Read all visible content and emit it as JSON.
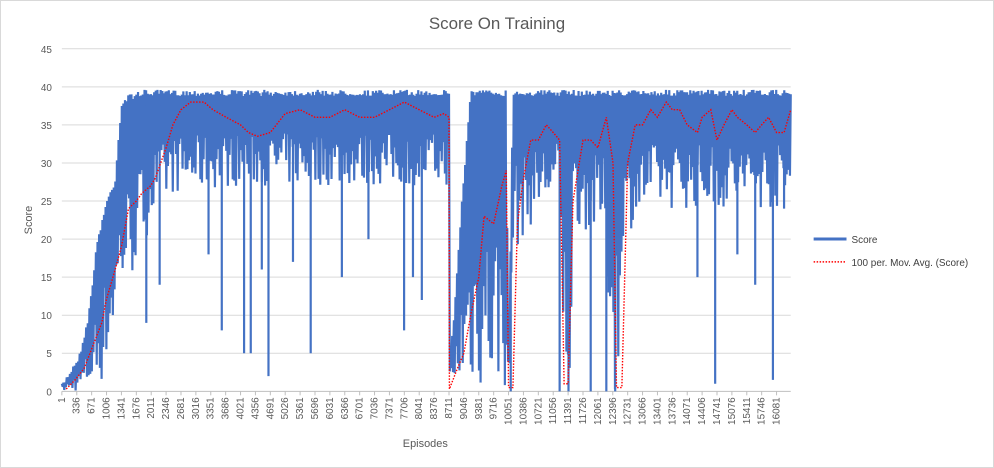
{
  "chart_data": {
    "type": "line",
    "title": "Score On Training",
    "xlabel": "Episodes",
    "ylabel": "Score",
    "ylim": [
      0,
      45
    ],
    "yticks": [
      0,
      5,
      10,
      15,
      20,
      25,
      30,
      35,
      40,
      45
    ],
    "xlim": [
      1,
      16400
    ],
    "xticks": [
      "1",
      "336",
      "671",
      "1006",
      "1341",
      "1676",
      "2011",
      "2346",
      "2681",
      "3016",
      "3351",
      "3686",
      "4021",
      "4356",
      "4691",
      "5026",
      "5361",
      "5696",
      "6031",
      "6366",
      "6701",
      "7036",
      "7371",
      "7706",
      "8041",
      "8376",
      "8711",
      "9046",
      "9381",
      "9716",
      "10051",
      "10386",
      "10721",
      "11056",
      "11391",
      "11726",
      "12061",
      "12396",
      "12731",
      "13066",
      "13401",
      "13736",
      "14071",
      "14406",
      "14741",
      "15076",
      "15411",
      "15746",
      "16081"
    ],
    "grid": "horizontal",
    "legend_position": "right",
    "colors": {
      "score": "#4472c4",
      "avg": "#ff0000"
    },
    "series": [
      {
        "name": "Score",
        "style": "solid",
        "upper": [
          [
            1,
            1
          ],
          [
            200,
            3
          ],
          [
            400,
            5
          ],
          [
            600,
            10
          ],
          [
            800,
            20
          ],
          [
            1000,
            25
          ],
          [
            1200,
            28
          ],
          [
            1341,
            38
          ],
          [
            1500,
            39
          ],
          [
            1800,
            39.6
          ],
          [
            8711,
            39.6
          ],
          [
            8712,
            5
          ],
          [
            8800,
            8
          ],
          [
            9000,
            25
          ],
          [
            9200,
            39.6
          ],
          [
            10000,
            39.6
          ],
          [
            10050,
            1
          ],
          [
            10150,
            39.6
          ],
          [
            11000,
            39.6
          ],
          [
            11200,
            39.6
          ],
          [
            11300,
            39.6
          ],
          [
            12300,
            39.6
          ],
          [
            12450,
            39.6
          ],
          [
            16400,
            39.6
          ]
        ],
        "lower": [
          [
            1,
            0
          ],
          [
            400,
            0
          ],
          [
            700,
            0.5
          ],
          [
            900,
            1
          ],
          [
            1100,
            6
          ],
          [
            1300,
            12
          ],
          [
            1600,
            15
          ],
          [
            2000,
            22
          ],
          [
            2500,
            26
          ],
          [
            4000,
            27
          ],
          [
            8700,
            27
          ],
          [
            8712,
            0
          ],
          [
            9900,
            0
          ],
          [
            10050,
            0
          ],
          [
            10150,
            18
          ],
          [
            10800,
            24
          ],
          [
            11200,
            25
          ],
          [
            11300,
            0
          ],
          [
            11450,
            0
          ],
          [
            11500,
            22
          ],
          [
            12200,
            20
          ],
          [
            12400,
            0
          ],
          [
            12550,
            0
          ],
          [
            12600,
            20
          ],
          [
            13200,
            24
          ],
          [
            16400,
            24
          ]
        ],
        "dips": [
          [
            1900,
            9
          ],
          [
            2200,
            14
          ],
          [
            3300,
            18
          ],
          [
            3600,
            8
          ],
          [
            4100,
            5
          ],
          [
            4250,
            5
          ],
          [
            4500,
            16
          ],
          [
            4650,
            2
          ],
          [
            5200,
            17
          ],
          [
            5600,
            5
          ],
          [
            6300,
            15
          ],
          [
            6900,
            20
          ],
          [
            7700,
            8
          ],
          [
            7900,
            15
          ],
          [
            8100,
            12
          ],
          [
            10100,
            0
          ],
          [
            11200,
            0
          ],
          [
            11400,
            0
          ],
          [
            11900,
            0
          ],
          [
            12250,
            0
          ],
          [
            12450,
            0
          ],
          [
            14300,
            15
          ],
          [
            14700,
            1
          ],
          [
            15200,
            18
          ],
          [
            15600,
            14
          ],
          [
            16000,
            1.5
          ],
          [
            16250,
            24
          ]
        ]
      },
      {
        "name": "100 per. Mov. Avg. (Score)",
        "style": "dotted",
        "values": [
          [
            100,
            0.3
          ],
          [
            300,
            1.5
          ],
          [
            500,
            3
          ],
          [
            700,
            6
          ],
          [
            900,
            9
          ],
          [
            1000,
            12
          ],
          [
            1200,
            16
          ],
          [
            1341,
            19
          ],
          [
            1500,
            24
          ],
          [
            1676,
            25
          ],
          [
            1800,
            26
          ],
          [
            2000,
            27
          ],
          [
            2100,
            28
          ],
          [
            2346,
            32
          ],
          [
            2500,
            35
          ],
          [
            2681,
            37
          ],
          [
            2900,
            38
          ],
          [
            3200,
            38
          ],
          [
            3400,
            37
          ],
          [
            3700,
            36
          ],
          [
            4021,
            35
          ],
          [
            4200,
            34
          ],
          [
            4400,
            33.5
          ],
          [
            4691,
            34
          ],
          [
            5026,
            36.5
          ],
          [
            5361,
            37
          ],
          [
            5696,
            36
          ],
          [
            6031,
            36
          ],
          [
            6366,
            37
          ],
          [
            6701,
            36
          ],
          [
            7036,
            36
          ],
          [
            7371,
            37
          ],
          [
            7706,
            38
          ],
          [
            8041,
            37
          ],
          [
            8376,
            36
          ],
          [
            8600,
            36.5
          ],
          [
            8711,
            36
          ],
          [
            8720,
            0.3
          ],
          [
            8900,
            3
          ],
          [
            9046,
            5
          ],
          [
            9200,
            10
          ],
          [
            9381,
            15
          ],
          [
            9500,
            23
          ],
          [
            9716,
            22
          ],
          [
            9900,
            27
          ],
          [
            10000,
            29
          ],
          [
            10051,
            0.5
          ],
          [
            10150,
            0.5
          ],
          [
            10250,
            22
          ],
          [
            10386,
            28
          ],
          [
            10550,
            33
          ],
          [
            10721,
            33
          ],
          [
            10900,
            35
          ],
          [
            11056,
            34
          ],
          [
            11200,
            33
          ],
          [
            11300,
            1
          ],
          [
            11391,
            1
          ],
          [
            11500,
            25
          ],
          [
            11726,
            33
          ],
          [
            11900,
            33
          ],
          [
            12061,
            32
          ],
          [
            12250,
            36
          ],
          [
            12400,
            30
          ],
          [
            12480,
            0.5
          ],
          [
            12600,
            0.5
          ],
          [
            12731,
            30
          ],
          [
            12900,
            35
          ],
          [
            13066,
            35
          ],
          [
            13250,
            37
          ],
          [
            13401,
            36
          ],
          [
            13600,
            38
          ],
          [
            13736,
            37
          ],
          [
            13900,
            37
          ],
          [
            14071,
            35
          ],
          [
            14300,
            34
          ],
          [
            14406,
            36
          ],
          [
            14600,
            37
          ],
          [
            14741,
            33
          ],
          [
            14900,
            35
          ],
          [
            15076,
            37
          ],
          [
            15200,
            36
          ],
          [
            15411,
            35
          ],
          [
            15600,
            34
          ],
          [
            15746,
            35
          ],
          [
            15900,
            36
          ],
          [
            16081,
            34
          ],
          [
            16250,
            34
          ],
          [
            16400,
            37
          ]
        ]
      }
    ]
  }
}
